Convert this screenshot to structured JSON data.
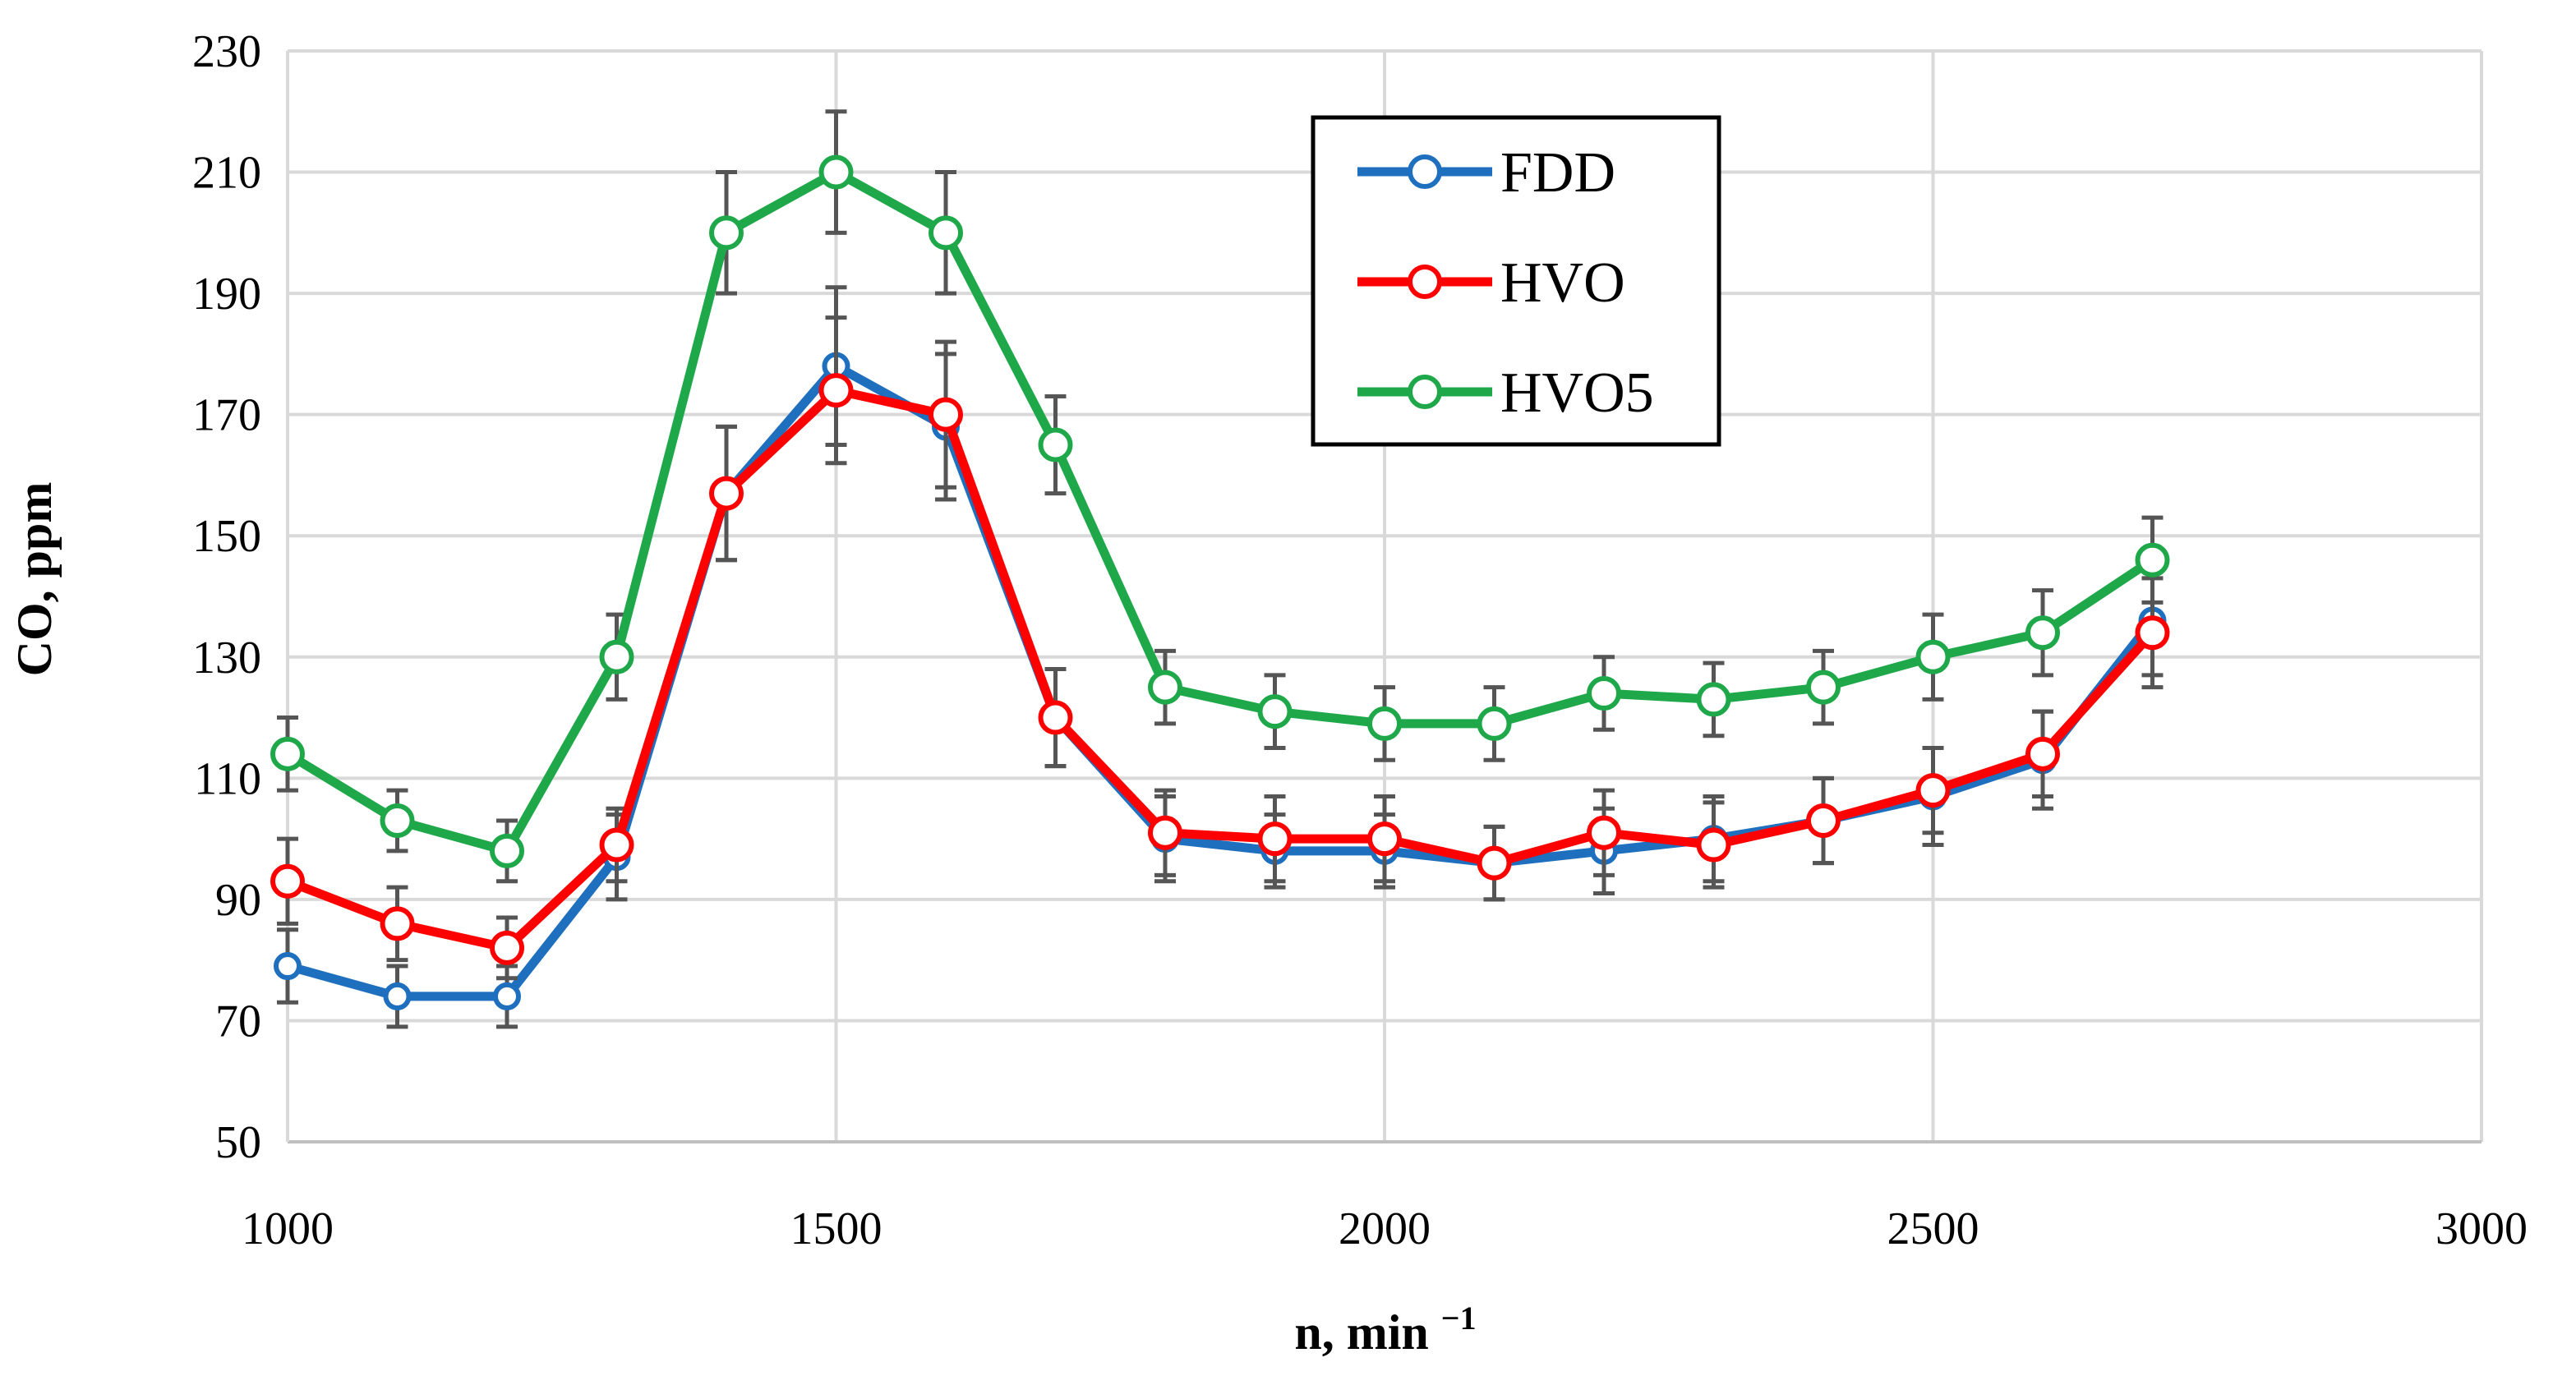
{
  "chart_data": {
    "type": "line",
    "title": "",
    "xlabel": "n, min",
    "xlabel_sup": "−1",
    "ylabel": "CO, ppm",
    "xlim": [
      1000,
      3000
    ],
    "ylim": [
      50,
      230
    ],
    "xticks": [
      1000,
      1500,
      2000,
      2500,
      3000
    ],
    "yticks": [
      50,
      70,
      90,
      110,
      130,
      150,
      170,
      190,
      210,
      230
    ],
    "grid": true,
    "legend_position": "top-center",
    "x": [
      1000,
      1100,
      1200,
      1300,
      1400,
      1500,
      1600,
      1700,
      1800,
      1900,
      2000,
      2100,
      2200,
      2300,
      2400,
      2500,
      2600,
      2700
    ],
    "series": [
      {
        "name": "FDD",
        "color": "#1f6fbf",
        "values": [
          79,
          74,
          74,
          97,
          157,
          178,
          168,
          120,
          100,
          98,
          98,
          96,
          98,
          100,
          103,
          107,
          113,
          136
        ],
        "errors": [
          6,
          5,
          5,
          7,
          11,
          13,
          12,
          8,
          7,
          6,
          6,
          6,
          7,
          7,
          7,
          8,
          8,
          9
        ]
      },
      {
        "name": "HVO",
        "color": "#ff0000",
        "values": [
          93,
          86,
          82,
          99,
          157,
          174,
          170,
          120,
          101,
          100,
          100,
          96,
          101,
          99,
          103,
          108,
          114,
          134
        ],
        "errors": [
          7,
          6,
          5,
          6,
          11,
          12,
          12,
          8,
          7,
          7,
          7,
          6,
          7,
          7,
          7,
          7,
          7,
          9
        ]
      },
      {
        "name": "HVO5",
        "color": "#1fa84a",
        "values": [
          114,
          103,
          98,
          130,
          200,
          210,
          200,
          165,
          125,
          121,
          119,
          119,
          124,
          123,
          125,
          130,
          134,
          146
        ],
        "errors": [
          6,
          5,
          5,
          7,
          10,
          10,
          10,
          8,
          6,
          6,
          6,
          6,
          6,
          6,
          6,
          7,
          7,
          7
        ]
      }
    ]
  }
}
